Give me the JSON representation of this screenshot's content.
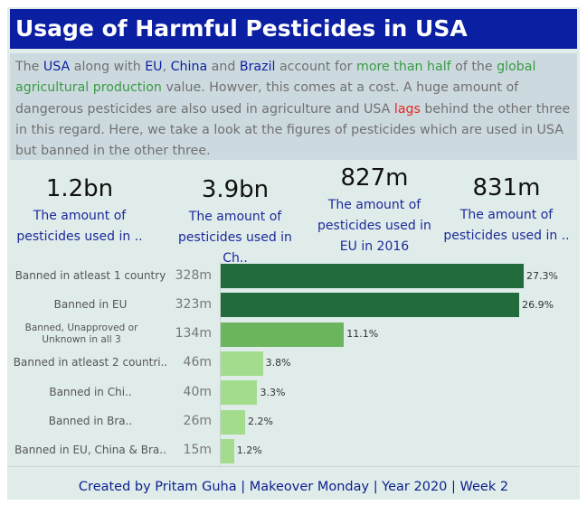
{
  "title": "Usage of Harmful Pesticides in USA",
  "intro": [
    {
      "t": "The ",
      "c": ""
    },
    {
      "t": "USA",
      "c": "blue"
    },
    {
      "t": " along with ",
      "c": ""
    },
    {
      "t": "EU",
      "c": "blue"
    },
    {
      "t": ", ",
      "c": ""
    },
    {
      "t": "China",
      "c": "blue"
    },
    {
      "t": " and ",
      "c": ""
    },
    {
      "t": "Brazil",
      "c": "blue"
    },
    {
      "t": " account for ",
      "c": ""
    },
    {
      "t": "more than half",
      "c": "green"
    },
    {
      "t": " of the ",
      "c": ""
    },
    {
      "t": "global agricultural production",
      "c": "green"
    },
    {
      "t": " value. Howver, this comes at a cost. A huge amount of dangerous pesticides are also used in agriculture and USA ",
      "c": ""
    },
    {
      "t": "lags",
      "c": "red"
    },
    {
      "t": " behind the other three in this regard. Here, we take a look at the figures of pesticides which are used in USA but banned in the other three.",
      "c": ""
    }
  ],
  "kpis": [
    {
      "value": "1.2bn",
      "label_lines": [
        "The amount of",
        "pesticides used in .."
      ]
    },
    {
      "value": "3.9bn",
      "label_lines": [
        "The amount of",
        "pesticides used in Ch.."
      ]
    },
    {
      "value": "827m",
      "label_lines": [
        "The amount of",
        "pesticides used in",
        "EU in 2016"
      ]
    },
    {
      "value": "831m",
      "label_lines": [
        "The amount of",
        "pesticides used in .."
      ]
    }
  ],
  "chart_data": {
    "type": "bar",
    "orientation": "horizontal",
    "categories": [
      "Banned in atleast 1 country",
      "Banned in EU",
      "Banned, Unapproved or Unknown in all 3",
      "Banned in atleast 2 countri..",
      "Banned in Chi..",
      "Banned in Bra..",
      "Banned in EU, China & Bra.."
    ],
    "value_labels": [
      "328m",
      "323m",
      "134m",
      "46m",
      "40m",
      "26m",
      "15m"
    ],
    "values": [
      27.3,
      26.9,
      11.1,
      3.8,
      3.3,
      2.2,
      1.2
    ],
    "data_labels": [
      "27.3%",
      "26.9%",
      "11.1%",
      "3.8%",
      "3.3%",
      "2.2%",
      "1.2%"
    ],
    "xlim": [
      0,
      27.3
    ],
    "colors": [
      "#226b3c",
      "#226b3c",
      "#6ab55e",
      "#a3dc8c",
      "#a3dc8c",
      "#a3dc8c",
      "#a3dc8c"
    ],
    "legend": "none",
    "grid": false
  },
  "colors": {
    "title_bg": "#0b1fa3",
    "intro_bg": "#ccdadf",
    "panel_bg": "#dfecea",
    "highlight_blue": "#0b1fa3",
    "highlight_green": "#3a9a45",
    "highlight_red": "#e8231c"
  },
  "footer": "Created by Pritam Guha | Makeover Monday | Year 2020 | Week 2"
}
